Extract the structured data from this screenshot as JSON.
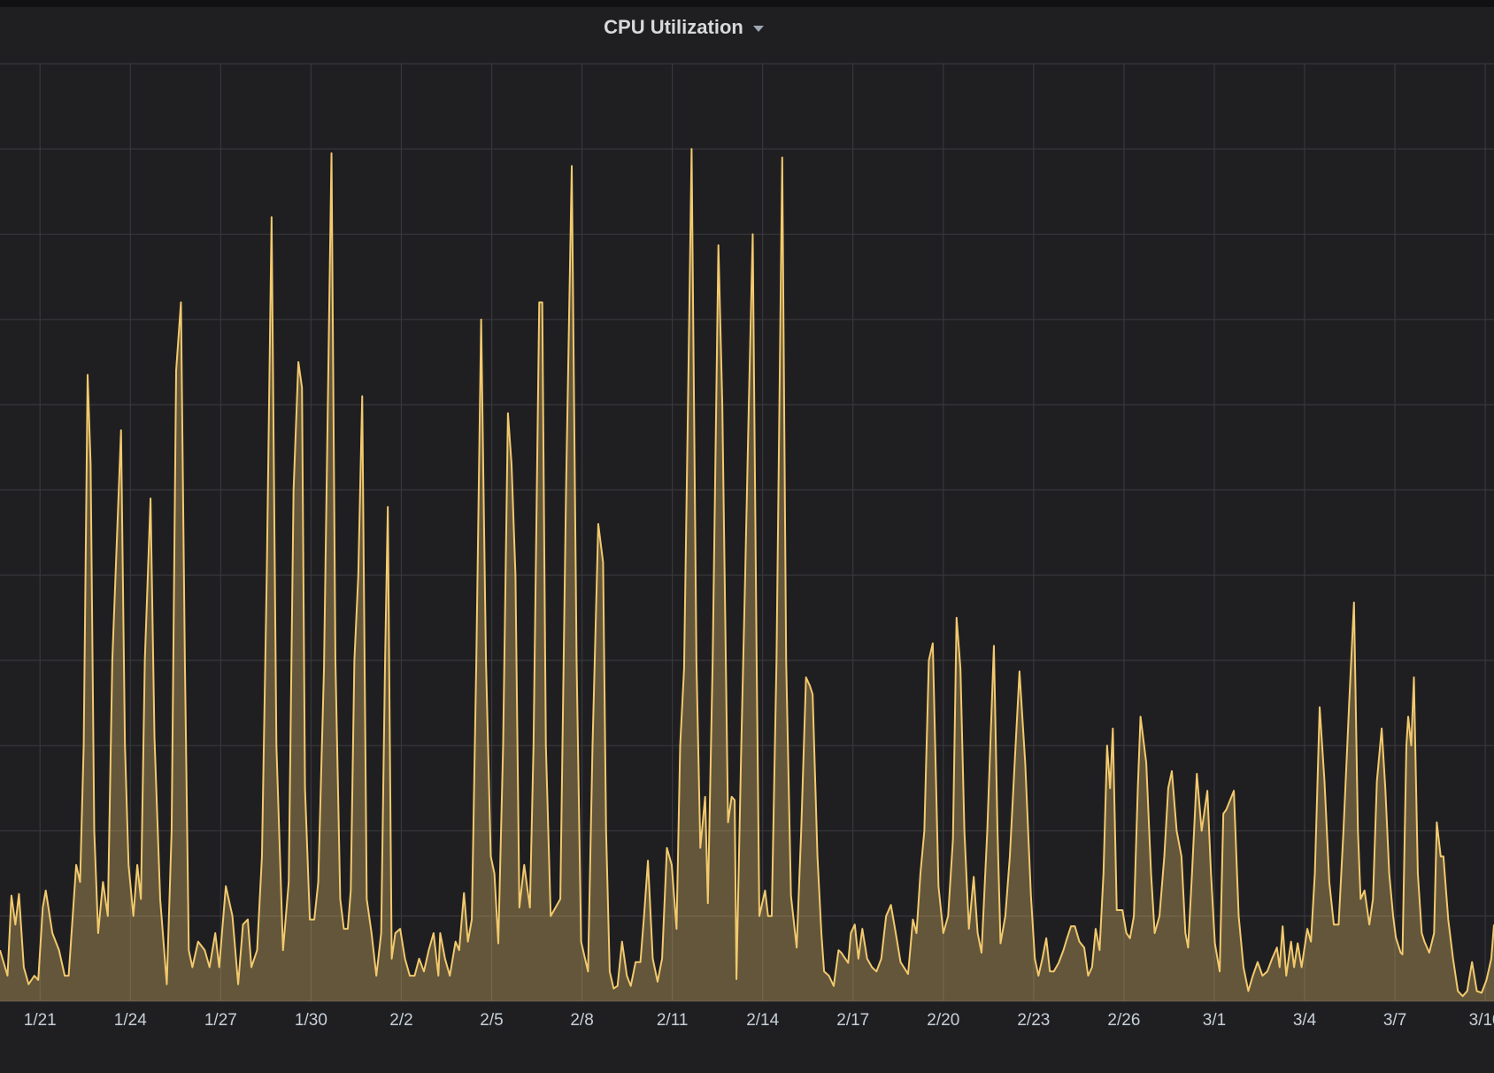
{
  "chart_data": {
    "type": "line",
    "title": "CPU Utilization",
    "color": "#f2c96d",
    "grid": true,
    "xlim": [
      19.67,
      69.29
    ],
    "ylim": [
      0,
      110
    ],
    "yticks": [
      0,
      10,
      20,
      30,
      40,
      50,
      60,
      70,
      80,
      90,
      100,
      110
    ],
    "xticks": [
      {
        "value": 21,
        "label": "1/21"
      },
      {
        "value": 24,
        "label": "1/24"
      },
      {
        "value": 27,
        "label": "1/27"
      },
      {
        "value": 30,
        "label": "1/30"
      },
      {
        "value": 33,
        "label": "2/2"
      },
      {
        "value": 36,
        "label": "2/5"
      },
      {
        "value": 39,
        "label": "2/8"
      },
      {
        "value": 42,
        "label": "2/11"
      },
      {
        "value": 45,
        "label": "2/14"
      },
      {
        "value": 48,
        "label": "2/17"
      },
      {
        "value": 51,
        "label": "2/20"
      },
      {
        "value": 54,
        "label": "2/23"
      },
      {
        "value": 57,
        "label": "2/26"
      },
      {
        "value": 60,
        "label": "3/1"
      },
      {
        "value": 63,
        "label": "3/4"
      },
      {
        "value": 66,
        "label": "3/7"
      },
      {
        "value": 69,
        "label": "3/10"
      }
    ],
    "x": [
      19.67,
      19.92,
      20.05,
      20.18,
      20.3,
      20.46,
      20.62,
      20.81,
      20.94,
      21.09,
      21.19,
      21.41,
      21.63,
      21.82,
      21.95,
      22.2,
      22.33,
      22.45,
      22.58,
      22.68,
      22.8,
      22.93,
      23.09,
      23.25,
      23.4,
      23.69,
      23.82,
      23.94,
      24.1,
      24.23,
      24.35,
      24.48,
      24.67,
      24.8,
      24.99,
      25.21,
      25.37,
      25.52,
      25.68,
      25.81,
      25.94,
      26.06,
      26.25,
      26.47,
      26.63,
      26.82,
      26.95,
      27.17,
      27.39,
      27.58,
      27.74,
      27.9,
      28.02,
      28.21,
      28.37,
      28.53,
      28.69,
      28.85,
      29.07,
      29.26,
      29.42,
      29.58,
      29.7,
      29.8,
      29.96,
      30.11,
      30.24,
      30.43,
      30.68,
      30.81,
      30.97,
      31.09,
      31.22,
      31.32,
      31.44,
      31.57,
      31.7,
      31.85,
      32.01,
      32.17,
      32.33,
      32.46,
      32.55,
      32.68,
      32.8,
      32.96,
      33.12,
      33.28,
      33.44,
      33.59,
      33.75,
      33.91,
      34.07,
      34.23,
      34.29,
      34.45,
      34.61,
      34.8,
      34.92,
      35.08,
      35.21,
      35.34,
      35.49,
      35.65,
      35.81,
      35.97,
      36.09,
      36.22,
      36.38,
      36.54,
      36.66,
      36.79,
      36.92,
      37.08,
      37.27,
      37.39,
      37.58,
      37.68,
      37.8,
      37.96,
      38.12,
      38.28,
      38.47,
      38.66,
      38.82,
      38.97,
      39.2,
      39.35,
      39.54,
      39.7,
      39.8,
      39.92,
      40.05,
      40.18,
      40.33,
      40.49,
      40.62,
      40.78,
      40.94,
      41.06,
      41.19,
      41.35,
      41.51,
      41.66,
      41.82,
      41.98,
      42.14,
      42.26,
      42.39,
      42.52,
      42.64,
      42.8,
      42.93,
      43.09,
      43.18,
      43.34,
      43.53,
      43.66,
      43.85,
      43.97,
      44.07,
      44.13,
      44.29,
      44.42,
      44.54,
      44.67,
      44.8,
      44.89,
      45.08,
      45.18,
      45.3,
      45.46,
      45.65,
      45.78,
      45.94,
      46.13,
      46.28,
      46.44,
      46.57,
      46.66,
      46.82,
      46.95,
      47.04,
      47.2,
      47.36,
      47.52,
      47.61,
      47.84,
      47.93,
      48.06,
      48.18,
      48.31,
      48.47,
      48.63,
      48.78,
      48.94,
      49.1,
      49.26,
      49.42,
      49.58,
      49.83,
      49.99,
      50.11,
      50.24,
      50.37,
      50.52,
      50.65,
      50.84,
      51.0,
      51.16,
      51.32,
      51.44,
      51.57,
      51.7,
      51.85,
      52.01,
      52.14,
      52.27,
      52.46,
      52.68,
      52.8,
      52.9,
      53.06,
      53.21,
      53.4,
      53.53,
      53.72,
      53.91,
      54.04,
      54.16,
      54.29,
      54.42,
      54.54,
      54.67,
      54.83,
      54.99,
      55.11,
      55.24,
      55.37,
      55.52,
      55.68,
      55.81,
      55.94,
      56.06,
      56.19,
      56.32,
      56.44,
      56.54,
      56.63,
      56.76,
      56.95,
      57.08,
      57.2,
      57.33,
      57.46,
      57.55,
      57.74,
      57.9,
      58.02,
      58.18,
      58.34,
      58.47,
      58.59,
      58.75,
      58.91,
      59.04,
      59.13,
      59.26,
      59.42,
      59.58,
      59.77,
      59.89,
      60.02,
      60.18,
      60.3,
      60.4,
      60.65,
      60.81,
      60.97,
      61.13,
      61.28,
      61.44,
      61.6,
      61.76,
      61.92,
      62.08,
      62.17,
      62.27,
      62.39,
      62.55,
      62.65,
      62.77,
      62.9,
      63.09,
      63.21,
      63.34,
      63.5,
      63.66,
      63.82,
      63.97,
      64.13,
      64.29,
      64.48,
      64.64,
      64.77,
      64.86,
      64.99,
      65.15,
      65.27,
      65.4,
      65.56,
      65.68,
      65.81,
      65.94,
      66.03,
      66.19,
      66.25,
      66.38,
      66.44,
      66.54,
      66.63,
      66.76,
      66.89,
      66.98,
      67.14,
      67.3,
      67.39,
      67.52,
      67.61,
      67.77,
      67.93,
      68.09,
      68.25,
      68.4,
      68.56,
      68.72,
      68.88,
      69.04,
      69.2,
      69.29
    ],
    "values": [
      6,
      3,
      12.4,
      9,
      12.6,
      4,
      2,
      3,
      2.5,
      11,
      13,
      8,
      6,
      3,
      3,
      16,
      14,
      30,
      73.5,
      63,
      20,
      8,
      14,
      10,
      40,
      67,
      30,
      16,
      10,
      16,
      12,
      40,
      59,
      31,
      12,
      2,
      20,
      74,
      82,
      40,
      6,
      4,
      7,
      6,
      4,
      8,
      4,
      13.5,
      10,
      2,
      9,
      9.6,
      4,
      6,
      17,
      50,
      92,
      30,
      6,
      14,
      60,
      75,
      72,
      25,
      9.6,
      9.6,
      14,
      39,
      99.5,
      40,
      12,
      8.5,
      8.5,
      13,
      40,
      50,
      71,
      12,
      8,
      3,
      8,
      40,
      58,
      5,
      8,
      8.5,
      5,
      3,
      3,
      5,
      3.5,
      6,
      8,
      3,
      8,
      5,
      3,
      7,
      6,
      12.7,
      7,
      9.6,
      40,
      80,
      40,
      17,
      15,
      6.8,
      30,
      69,
      63,
      50,
      11,
      16,
      11,
      30,
      82,
      82,
      30,
      10,
      11,
      12,
      60,
      98,
      40,
      7,
      3.5,
      30,
      56,
      51.5,
      20,
      3.5,
      1.5,
      1.8,
      7,
      3,
      1.8,
      4.6,
      4.6,
      10,
      16.5,
      5,
      2.3,
      5,
      18,
      16,
      8.5,
      30,
      39,
      70,
      100,
      40,
      18,
      24,
      11.5,
      40,
      88.7,
      70,
      21,
      24,
      23.6,
      2.6,
      30,
      50,
      70,
      90,
      40,
      10,
      13,
      10,
      10,
      40,
      99,
      40,
      12.4,
      6.3,
      20,
      38,
      37,
      36,
      17,
      8,
      3.5,
      3,
      1.8,
      6,
      5.7,
      4.5,
      8,
      9,
      5,
      8.5,
      5,
      4,
      3.5,
      5,
      10,
      11.3,
      8,
      4.6,
      3.2,
      9.6,
      8,
      15,
      20,
      40,
      42,
      13.5,
      8,
      10,
      19,
      45,
      39,
      20,
      8.5,
      14.6,
      8,
      5.7,
      20,
      41.7,
      20,
      6.8,
      10,
      17,
      30,
      38.7,
      28,
      12.4,
      5,
      3,
      5,
      7.4,
      3.5,
      3.5,
      4.5,
      6,
      7.4,
      8.8,
      8.8,
      7,
      6.3,
      3,
      4,
      8.5,
      6,
      15,
      30,
      25,
      32,
      10.7,
      10.7,
      8,
      7.4,
      10,
      25,
      33.4,
      28,
      15,
      8,
      10,
      17,
      25,
      27,
      20,
      17,
      8,
      6.3,
      15,
      26.7,
      20,
      24.7,
      15,
      6.8,
      3.5,
      22,
      22.5,
      24.7,
      10,
      4,
      1.2,
      3,
      4.6,
      3,
      3.5,
      5,
      6.3,
      4,
      8.8,
      3,
      7,
      4,
      6.8,
      4,
      8.5,
      7,
      15,
      34.5,
      25.8,
      14,
      9,
      9,
      20,
      35,
      46.8,
      20,
      12,
      13,
      9,
      12,
      25.8,
      32,
      25,
      15,
      10,
      7.5,
      5.7,
      5.5,
      30,
      33.4,
      30,
      38,
      15,
      8,
      7,
      5.7,
      8,
      21,
      17,
      17,
      9.6,
      5,
      1.2,
      0.6,
      1.2,
      4.6,
      1.2,
      1,
      2.5,
      5,
      9
    ]
  }
}
